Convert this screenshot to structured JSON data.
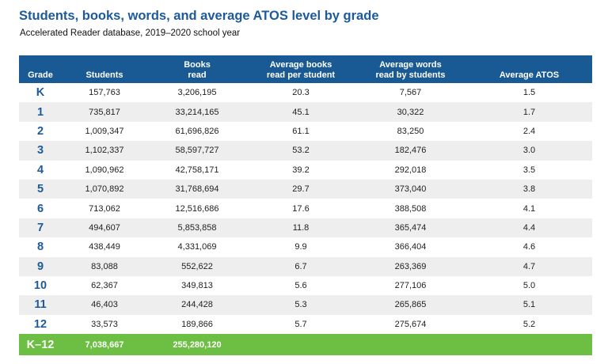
{
  "title": "Students, books, words, and average ATOS level by grade",
  "subtitle": "Accelerated Reader database, 2019–2020 school year",
  "colors": {
    "title": "#1d5a9c",
    "header_bg": "#1a5a94",
    "total_bg": "#6cbf43",
    "alt_row": "#eeeeee"
  },
  "chart_data": {
    "type": "table",
    "title": "Students, books, words, and average ATOS level by grade",
    "subtitle": "Accelerated Reader database, 2019–2020 school year",
    "columns": [
      "Grade",
      "Students",
      "Books\nread",
      "Average books\nread per student",
      "Average words\nread by students",
      "Average ATOS"
    ],
    "rows": [
      [
        "K",
        "157,763",
        "3,206,195",
        "20.3",
        "7,567",
        "1.5"
      ],
      [
        "1",
        "735,817",
        "33,214,165",
        "45.1",
        "30,322",
        "1.7"
      ],
      [
        "2",
        "1,009,347",
        "61,696,826",
        "61.1",
        "83,250",
        "2.4"
      ],
      [
        "3",
        "1,102,337",
        "58,597,727",
        "53.2",
        "182,476",
        "3.0"
      ],
      [
        "4",
        "1,090,962",
        "42,758,171",
        "39.2",
        "292,018",
        "3.5"
      ],
      [
        "5",
        "1,070,892",
        "31,768,694",
        "29.7",
        "373,040",
        "3.8"
      ],
      [
        "6",
        "713,062",
        "12,516,686",
        "17.6",
        "388,508",
        "4.1"
      ],
      [
        "7",
        "494,607",
        "5,853,858",
        "11.8",
        "365,474",
        "4.4"
      ],
      [
        "8",
        "438,449",
        "4,331,069",
        "9.9",
        "366,404",
        "4.6"
      ],
      [
        "9",
        "83,088",
        "552,622",
        "6.7",
        "263,369",
        "4.7"
      ],
      [
        "10",
        "62,367",
        "349,813",
        "5.6",
        "277,106",
        "5.0"
      ],
      [
        "11",
        "46,403",
        "244,428",
        "5.3",
        "265,865",
        "5.1"
      ],
      [
        "12",
        "33,573",
        "189,866",
        "5.7",
        "275,674",
        "5.2"
      ]
    ],
    "total": [
      "K–12",
      "7,038,667",
      "255,280,120",
      "",
      "",
      ""
    ]
  }
}
